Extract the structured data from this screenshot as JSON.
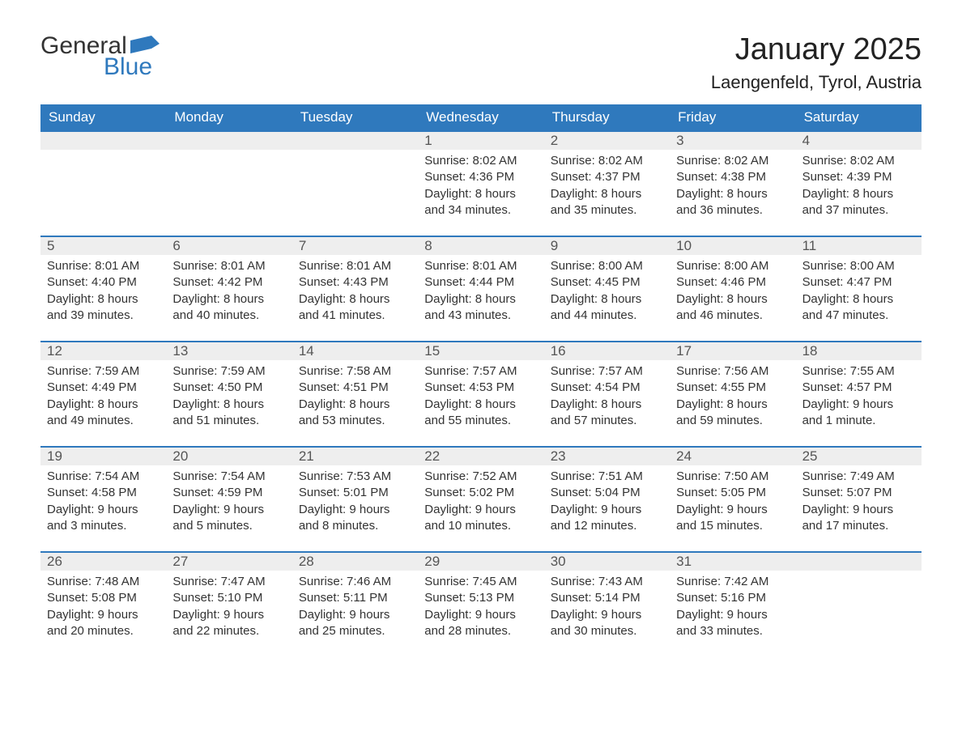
{
  "logo": {
    "text_general": "General",
    "text_blue": "Blue",
    "brand_color": "#2f79bd"
  },
  "header": {
    "month_title": "January 2025",
    "location": "Laengenfeld, Tyrol, Austria"
  },
  "colors": {
    "header_bg": "#2f79bd",
    "header_text": "#ffffff",
    "daynum_bg": "#eeeeee",
    "body_text": "#333333",
    "row_border": "#2f79bd",
    "page_bg": "#ffffff"
  },
  "weekdays": [
    "Sunday",
    "Monday",
    "Tuesday",
    "Wednesday",
    "Thursday",
    "Friday",
    "Saturday"
  ],
  "calendar": {
    "leading_blanks": 3,
    "days": [
      {
        "n": 1,
        "sunrise": "8:02 AM",
        "sunset": "4:36 PM",
        "daylight": "8 hours and 34 minutes."
      },
      {
        "n": 2,
        "sunrise": "8:02 AM",
        "sunset": "4:37 PM",
        "daylight": "8 hours and 35 minutes."
      },
      {
        "n": 3,
        "sunrise": "8:02 AM",
        "sunset": "4:38 PM",
        "daylight": "8 hours and 36 minutes."
      },
      {
        "n": 4,
        "sunrise": "8:02 AM",
        "sunset": "4:39 PM",
        "daylight": "8 hours and 37 minutes."
      },
      {
        "n": 5,
        "sunrise": "8:01 AM",
        "sunset": "4:40 PM",
        "daylight": "8 hours and 39 minutes."
      },
      {
        "n": 6,
        "sunrise": "8:01 AM",
        "sunset": "4:42 PM",
        "daylight": "8 hours and 40 minutes."
      },
      {
        "n": 7,
        "sunrise": "8:01 AM",
        "sunset": "4:43 PM",
        "daylight": "8 hours and 41 minutes."
      },
      {
        "n": 8,
        "sunrise": "8:01 AM",
        "sunset": "4:44 PM",
        "daylight": "8 hours and 43 minutes."
      },
      {
        "n": 9,
        "sunrise": "8:00 AM",
        "sunset": "4:45 PM",
        "daylight": "8 hours and 44 minutes."
      },
      {
        "n": 10,
        "sunrise": "8:00 AM",
        "sunset": "4:46 PM",
        "daylight": "8 hours and 46 minutes."
      },
      {
        "n": 11,
        "sunrise": "8:00 AM",
        "sunset": "4:47 PM",
        "daylight": "8 hours and 47 minutes."
      },
      {
        "n": 12,
        "sunrise": "7:59 AM",
        "sunset": "4:49 PM",
        "daylight": "8 hours and 49 minutes."
      },
      {
        "n": 13,
        "sunrise": "7:59 AM",
        "sunset": "4:50 PM",
        "daylight": "8 hours and 51 minutes."
      },
      {
        "n": 14,
        "sunrise": "7:58 AM",
        "sunset": "4:51 PM",
        "daylight": "8 hours and 53 minutes."
      },
      {
        "n": 15,
        "sunrise": "7:57 AM",
        "sunset": "4:53 PM",
        "daylight": "8 hours and 55 minutes."
      },
      {
        "n": 16,
        "sunrise": "7:57 AM",
        "sunset": "4:54 PM",
        "daylight": "8 hours and 57 minutes."
      },
      {
        "n": 17,
        "sunrise": "7:56 AM",
        "sunset": "4:55 PM",
        "daylight": "8 hours and 59 minutes."
      },
      {
        "n": 18,
        "sunrise": "7:55 AM",
        "sunset": "4:57 PM",
        "daylight": "9 hours and 1 minute."
      },
      {
        "n": 19,
        "sunrise": "7:54 AM",
        "sunset": "4:58 PM",
        "daylight": "9 hours and 3 minutes."
      },
      {
        "n": 20,
        "sunrise": "7:54 AM",
        "sunset": "4:59 PM",
        "daylight": "9 hours and 5 minutes."
      },
      {
        "n": 21,
        "sunrise": "7:53 AM",
        "sunset": "5:01 PM",
        "daylight": "9 hours and 8 minutes."
      },
      {
        "n": 22,
        "sunrise": "7:52 AM",
        "sunset": "5:02 PM",
        "daylight": "9 hours and 10 minutes."
      },
      {
        "n": 23,
        "sunrise": "7:51 AM",
        "sunset": "5:04 PM",
        "daylight": "9 hours and 12 minutes."
      },
      {
        "n": 24,
        "sunrise": "7:50 AM",
        "sunset": "5:05 PM",
        "daylight": "9 hours and 15 minutes."
      },
      {
        "n": 25,
        "sunrise": "7:49 AM",
        "sunset": "5:07 PM",
        "daylight": "9 hours and 17 minutes."
      },
      {
        "n": 26,
        "sunrise": "7:48 AM",
        "sunset": "5:08 PM",
        "daylight": "9 hours and 20 minutes."
      },
      {
        "n": 27,
        "sunrise": "7:47 AM",
        "sunset": "5:10 PM",
        "daylight": "9 hours and 22 minutes."
      },
      {
        "n": 28,
        "sunrise": "7:46 AM",
        "sunset": "5:11 PM",
        "daylight": "9 hours and 25 minutes."
      },
      {
        "n": 29,
        "sunrise": "7:45 AM",
        "sunset": "5:13 PM",
        "daylight": "9 hours and 28 minutes."
      },
      {
        "n": 30,
        "sunrise": "7:43 AM",
        "sunset": "5:14 PM",
        "daylight": "9 hours and 30 minutes."
      },
      {
        "n": 31,
        "sunrise": "7:42 AM",
        "sunset": "5:16 PM",
        "daylight": "9 hours and 33 minutes."
      }
    ],
    "trailing_blanks": 1,
    "labels": {
      "sunrise_prefix": "Sunrise: ",
      "sunset_prefix": "Sunset: ",
      "daylight_prefix": "Daylight: "
    }
  }
}
